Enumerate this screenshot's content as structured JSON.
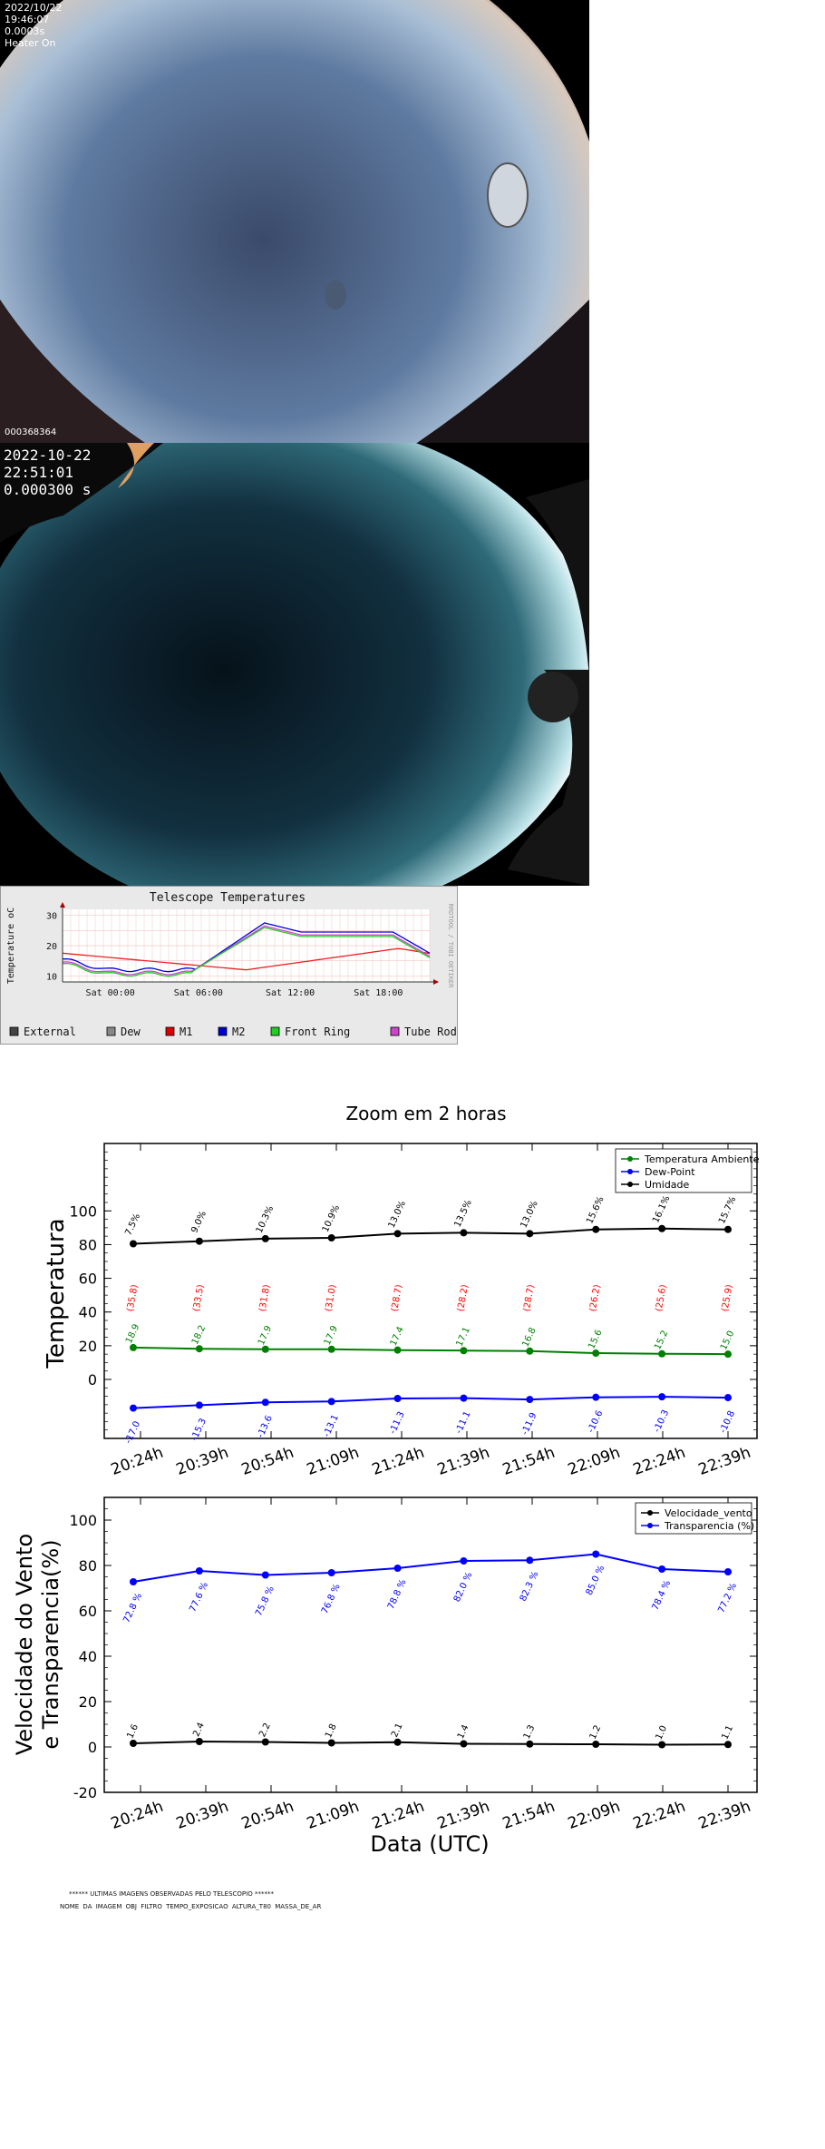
{
  "camera1": {
    "date": "2022/10/22",
    "time": "19:46:07",
    "exposure": "0.0003s",
    "heater": "Heater On",
    "frame_id": "000368364"
  },
  "camera2": {
    "date": "2022-10-22",
    "time": "22:51:01",
    "exposure": "0.000300 s"
  },
  "telescope_chart": {
    "type": "line",
    "title": "Telescope Temperatures",
    "ylabel": "Temperature oC",
    "side_text": "RRDTOOL / TOBI OETIKER",
    "y_ticks": [
      "30",
      "20",
      "10"
    ],
    "x_ticks": [
      "Sat 00:00",
      "Sat 06:00",
      "Sat 12:00",
      "Sat 18:00"
    ],
    "legend": [
      {
        "name": "External",
        "color": "#444444"
      },
      {
        "name": "Dew",
        "color": "#888888"
      },
      {
        "name": "M1",
        "color": "#dd0000"
      },
      {
        "name": "M2",
        "color": "#0000cc"
      },
      {
        "name": "Front Ring",
        "color": "#22cc22"
      },
      {
        "name": "Tube Rod",
        "color": "#cc44cc"
      }
    ],
    "colors": {
      "m1": "#ee2222",
      "m2": "#0000dd",
      "front_ring": "#22cc22",
      "tube_rod": "#cc44cc"
    }
  },
  "zoom_title": "Zoom em 2 horas",
  "chart_data": [
    {
      "type": "line",
      "ylabel": "Temperatura",
      "ylim": [
        -35,
        140
      ],
      "y_ticks": [
        0,
        20,
        40,
        60,
        80,
        100
      ],
      "categories": [
        "20:24h",
        "20:39h",
        "20:54h",
        "21:09h",
        "21:24h",
        "21:39h",
        "21:54h",
        "22:09h",
        "22:24h",
        "22:39h"
      ],
      "legend_position": "top-right",
      "series": [
        {
          "name": "Temperatura Ambiente",
          "color": "#008000",
          "values": [
            18.9,
            18.2,
            17.9,
            17.9,
            17.4,
            17.1,
            16.8,
            15.6,
            15.2,
            15.0
          ],
          "labels": [
            "18.9",
            "18.2",
            "17.9",
            "17.9",
            "17.4",
            "17.1",
            "16.8",
            "15.6",
            "15.2",
            "15.0"
          ]
        },
        {
          "name": "Dew-Point",
          "color": "#0000ff",
          "values": [
            -17.0,
            -15.3,
            -13.6,
            -13.1,
            -11.3,
            -11.1,
            -11.9,
            -10.6,
            -10.3,
            -10.8
          ],
          "labels": [
            "-17.0",
            "-15.3",
            "-13.6",
            "-13.1",
            "-11.3",
            "-11.1",
            "-11.9",
            "-10.6",
            "-10.3",
            "-10.8"
          ]
        },
        {
          "name": "Umidade",
          "color": "#000000",
          "values": [
            80.5,
            82.0,
            83.5,
            84.0,
            86.5,
            87.0,
            86.5,
            89.0,
            89.5,
            89.0
          ],
          "labels": [
            "7.5%",
            "9.0%",
            "10.3%",
            "10.9%",
            "13.0%",
            "13.5%",
            "13.0%",
            "15.6%",
            "16.1%",
            "15.7%"
          ]
        }
      ],
      "extra_labels": {
        "color": "#ff0000",
        "values": [
          "(35.8)",
          "(33.5)",
          "(31.8)",
          "(31.0)",
          "(28.7)",
          "(28.2)",
          "(28.7)",
          "(26.2)",
          "(25.6)",
          "(25.9)"
        ]
      }
    },
    {
      "type": "line",
      "ylabel_line1": "Velocidade do Vento",
      "ylabel_line2": "e Transparencia(%)",
      "xlabel": "Data (UTC)",
      "ylim": [
        -20,
        110
      ],
      "y_ticks": [
        -20,
        0,
        20,
        40,
        60,
        80,
        100
      ],
      "categories": [
        "20:24h",
        "20:39h",
        "20:54h",
        "21:09h",
        "21:24h",
        "21:39h",
        "21:54h",
        "22:09h",
        "22:24h",
        "22:39h"
      ],
      "legend_position": "top-right",
      "series": [
        {
          "name": "Velocidade_vento",
          "color": "#000000",
          "values": [
            1.6,
            2.4,
            2.2,
            1.8,
            2.1,
            1.4,
            1.3,
            1.2,
            1.0,
            1.1
          ],
          "labels": [
            "1.6",
            "2.4",
            "2.2",
            "1.8",
            "2.1",
            "1.4",
            "1.3",
            "1.2",
            "1.0",
            "1.1"
          ]
        },
        {
          "name": "Transparencia (%)",
          "color": "#0000ff",
          "values": [
            72.8,
            77.6,
            75.8,
            76.8,
            78.8,
            82.0,
            82.3,
            85.0,
            78.4,
            77.2
          ],
          "labels": [
            "72.8 %",
            "77.6 %",
            "75.8 %",
            "76.8 %",
            "78.8 %",
            "82.0 %",
            "82.3 %",
            "85.0 %",
            "78.4 %",
            "77.2 %"
          ]
        }
      ]
    }
  ],
  "footer": {
    "title": "****** ULTIMAS IMAGENS OBSERVADAS PELO TELESCOPIO ******",
    "columns": "NOME DA IMAGEM     OBJ     FILTRO     TEMPO_EXPOSICAO     ALTURA_T80     MASSA_DE_AR"
  }
}
